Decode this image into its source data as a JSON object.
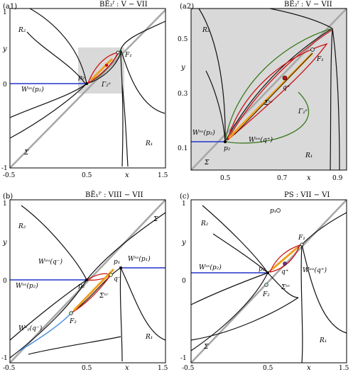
{
  "panels": [
    {
      "id": "a1",
      "label": "(a1)",
      "title": "BẼ₂ᶠ : V − VII",
      "x_ticks": [
        "-0.5",
        "0.5",
        "x",
        "1.5"
      ],
      "y_ticks": [
        "1",
        "y",
        "0",
        "-1"
      ],
      "region_labels": [
        "R₂",
        "R₁",
        "Σ"
      ],
      "annotations": [
        "Wˢˢ(p₂)",
        "p₂",
        "F₁",
        "Γ₂ˢ"
      ]
    },
    {
      "id": "a2",
      "label": "(a2)",
      "title": "BẼ₂ᶠ : V − VII",
      "x_ticks": [
        "0.5",
        "0.7",
        "x",
        "0.9"
      ],
      "y_ticks": [
        "0.5",
        "y",
        "0.3",
        "0.1"
      ],
      "region_labels": [
        "R₂",
        "R₁",
        "Σ"
      ],
      "annotations": [
        "Wˢˢ(p₂)",
        "p₂",
        "F₁",
        "q⁺",
        "Σˢʳ",
        "Γ₂ˢ",
        "Wᵘᵘ(q⁺)"
      ]
    },
    {
      "id": "b",
      "label": "(b)",
      "title": "BẼ₁ᴾ : VIII − VII",
      "x_ticks": [
        "-0.5",
        "0.5",
        "x",
        "1.5"
      ],
      "y_ticks": [
        "1",
        "y",
        "0",
        "-1"
      ],
      "region_labels": [
        "R₂",
        "R₁",
        "Σ"
      ],
      "annotations": [
        "Wᵘᵘ(q⁻)",
        "Wˢˢ(p₁)",
        "Wˢˢ(p₂)",
        "p₁",
        "p₂",
        "q⁻",
        "Σˢʳ",
        "F₂",
        "Wˢᵧ(q⁻)"
      ]
    },
    {
      "id": "c",
      "label": "(c)",
      "title": "PS : VII − VI",
      "x_ticks": [
        "-0.5",
        "0.5",
        "x",
        "1.5"
      ],
      "y_ticks": [
        "1",
        "y",
        "0",
        "-1"
      ],
      "region_labels": [
        "R₂",
        "R₁",
        "Σ"
      ],
      "annotations": [
        "p₁",
        "F₁",
        "Wˢˢ(p₂)",
        "p₂",
        "q⁺",
        "Wᵘᵘ(q⁺)",
        "F₂",
        "Σˢʳ"
      ]
    }
  ],
  "colors": {
    "stable_manifold": "#2233cc",
    "sliding_manifold": "#4a90e2",
    "periodic_orbit": "#cc1111",
    "gamma_orbit": "#3d7a1e",
    "sliding_segment": "#f0a020",
    "switching_line": "#a8a8a8",
    "zoom_box": "#d9d9d9"
  }
}
